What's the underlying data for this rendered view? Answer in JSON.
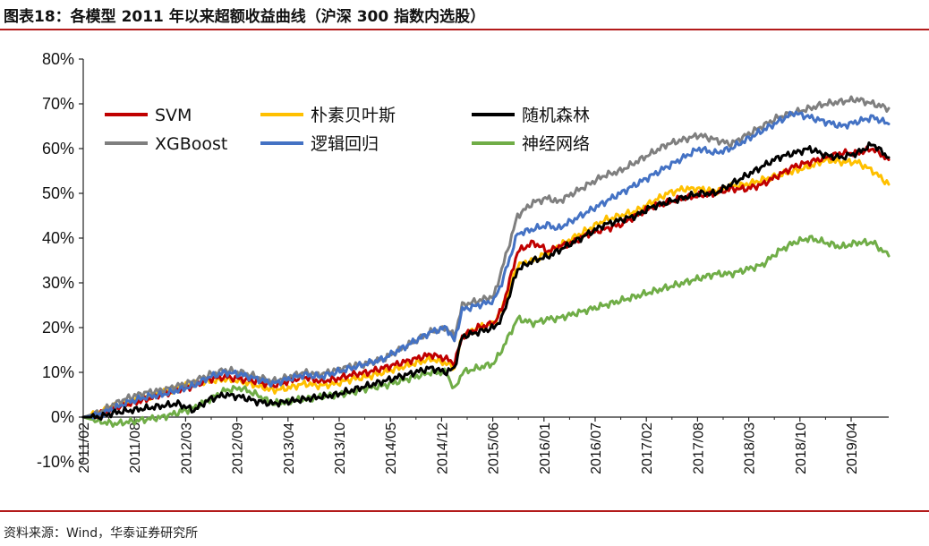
{
  "title": "图表18：各模型 2011 年以来超额收益曲线（沪深 300 指数内选股）",
  "source": "资料来源：Wind，华泰证券研究所",
  "chart_data": {
    "type": "line",
    "ylim": [
      -10,
      80
    ],
    "yticks": [
      -10,
      0,
      10,
      20,
      30,
      40,
      50,
      60,
      70,
      80
    ],
    "ytick_labels": [
      "-10%",
      "0%",
      "10%",
      "20%",
      "30%",
      "40%",
      "50%",
      "60%",
      "70%",
      "80%"
    ],
    "xticks": [
      "2011/02",
      "2011/08",
      "2012/03",
      "2012/09",
      "2013/04",
      "2013/10",
      "2014/05",
      "2014/12",
      "2015/06",
      "2016/01",
      "2016/07",
      "2017/02",
      "2017/08",
      "2018/03",
      "2018/10",
      "2019/04"
    ],
    "legend_placement": "top-left",
    "grid": false,
    "series": [
      {
        "name": "SVM",
        "color": "#c00000",
        "values": [
          [
            0,
            0
          ],
          [
            2,
            0.5
          ],
          [
            4,
            2
          ],
          [
            6,
            3
          ],
          [
            8,
            4
          ],
          [
            10,
            5
          ],
          [
            12,
            6
          ],
          [
            14,
            7
          ],
          [
            16,
            8.5
          ],
          [
            18,
            9
          ],
          [
            20,
            8.5
          ],
          [
            22,
            8
          ],
          [
            24,
            7
          ],
          [
            26,
            8
          ],
          [
            28,
            9
          ],
          [
            30,
            8
          ],
          [
            32,
            8.5
          ],
          [
            34,
            9.5
          ],
          [
            36,
            10
          ],
          [
            38,
            11
          ],
          [
            40,
            12
          ],
          [
            42,
            13
          ],
          [
            44,
            14
          ],
          [
            46,
            13
          ],
          [
            47,
            12
          ],
          [
            48,
            18
          ],
          [
            50,
            20
          ],
          [
            52,
            21
          ],
          [
            53,
            24
          ],
          [
            55,
            37
          ],
          [
            57,
            39
          ],
          [
            59,
            37
          ],
          [
            60,
            38
          ],
          [
            62,
            39
          ],
          [
            64,
            41
          ],
          [
            66,
            42
          ],
          [
            68,
            43
          ],
          [
            70,
            45
          ],
          [
            72,
            47
          ],
          [
            74,
            48
          ],
          [
            76,
            49
          ],
          [
            78,
            49.5
          ],
          [
            80,
            50
          ],
          [
            82,
            51
          ],
          [
            84,
            51
          ],
          [
            86,
            52
          ],
          [
            88,
            54
          ],
          [
            90,
            56
          ],
          [
            92,
            57
          ],
          [
            94,
            58
          ],
          [
            96,
            59
          ],
          [
            98,
            59
          ],
          [
            100,
            60
          ],
          [
            102,
            57.5
          ]
        ]
      },
      {
        "name": "朴素贝叶斯",
        "color": "#ffc000",
        "values": [
          [
            0,
            0
          ],
          [
            2,
            1
          ],
          [
            4,
            2.5
          ],
          [
            6,
            3.5
          ],
          [
            8,
            4.5
          ],
          [
            10,
            5.5
          ],
          [
            12,
            6.5
          ],
          [
            14,
            7.5
          ],
          [
            16,
            8
          ],
          [
            18,
            8.5
          ],
          [
            20,
            8
          ],
          [
            22,
            7
          ],
          [
            24,
            6
          ],
          [
            26,
            6.5
          ],
          [
            28,
            7.5
          ],
          [
            30,
            7
          ],
          [
            32,
            7.5
          ],
          [
            34,
            8.5
          ],
          [
            36,
            9
          ],
          [
            38,
            10
          ],
          [
            40,
            11
          ],
          [
            42,
            12
          ],
          [
            44,
            13
          ],
          [
            46,
            12
          ],
          [
            47,
            11
          ],
          [
            48,
            18
          ],
          [
            50,
            20
          ],
          [
            52,
            21
          ],
          [
            53,
            24
          ],
          [
            55,
            34
          ],
          [
            57,
            35
          ],
          [
            59,
            37
          ],
          [
            60,
            38
          ],
          [
            62,
            40
          ],
          [
            64,
            42
          ],
          [
            66,
            44
          ],
          [
            68,
            45
          ],
          [
            70,
            46
          ],
          [
            72,
            48
          ],
          [
            74,
            50
          ],
          [
            76,
            51
          ],
          [
            78,
            51
          ],
          [
            80,
            50.5
          ],
          [
            82,
            51.5
          ],
          [
            84,
            52
          ],
          [
            86,
            53
          ],
          [
            88,
            54
          ],
          [
            90,
            55
          ],
          [
            92,
            56
          ],
          [
            94,
            57.5
          ],
          [
            96,
            57
          ],
          [
            98,
            57
          ],
          [
            100,
            55
          ],
          [
            102,
            52
          ]
        ]
      },
      {
        "name": "随机森林",
        "color": "#000000",
        "values": [
          [
            0,
            0
          ],
          [
            2,
            0
          ],
          [
            4,
            1
          ],
          [
            6,
            1.5
          ],
          [
            8,
            2
          ],
          [
            10,
            2.5
          ],
          [
            12,
            3
          ],
          [
            14,
            1.5
          ],
          [
            16,
            4
          ],
          [
            18,
            5
          ],
          [
            20,
            4.5
          ],
          [
            22,
            3.5
          ],
          [
            24,
            3
          ],
          [
            26,
            3.5
          ],
          [
            28,
            4
          ],
          [
            30,
            4.5
          ],
          [
            32,
            5
          ],
          [
            34,
            6
          ],
          [
            36,
            7
          ],
          [
            38,
            8
          ],
          [
            40,
            9
          ],
          [
            42,
            10
          ],
          [
            44,
            11
          ],
          [
            46,
            10
          ],
          [
            47,
            11
          ],
          [
            48,
            18
          ],
          [
            50,
            19
          ],
          [
            52,
            20
          ],
          [
            53,
            22
          ],
          [
            55,
            33
          ],
          [
            57,
            35
          ],
          [
            59,
            36
          ],
          [
            60,
            37
          ],
          [
            62,
            39
          ],
          [
            64,
            41
          ],
          [
            66,
            43
          ],
          [
            68,
            44
          ],
          [
            70,
            45
          ],
          [
            72,
            47
          ],
          [
            74,
            48
          ],
          [
            76,
            49
          ],
          [
            78,
            50
          ],
          [
            80,
            50
          ],
          [
            82,
            52
          ],
          [
            84,
            54
          ],
          [
            86,
            56
          ],
          [
            88,
            58
          ],
          [
            90,
            59
          ],
          [
            92,
            60
          ],
          [
            94,
            58.5
          ],
          [
            96,
            58
          ],
          [
            98,
            59
          ],
          [
            100,
            61
          ],
          [
            102,
            58
          ]
        ]
      },
      {
        "name": "XGBoost",
        "color": "#7f7f7f",
        "values": [
          [
            0,
            0
          ],
          [
            2,
            1
          ],
          [
            4,
            3
          ],
          [
            6,
            4.5
          ],
          [
            8,
            5.5
          ],
          [
            10,
            6
          ],
          [
            12,
            7
          ],
          [
            14,
            8
          ],
          [
            16,
            9.5
          ],
          [
            18,
            10.5
          ],
          [
            20,
            10
          ],
          [
            22,
            9
          ],
          [
            24,
            8
          ],
          [
            26,
            9
          ],
          [
            28,
            10
          ],
          [
            30,
            9.5
          ],
          [
            32,
            10.5
          ],
          [
            34,
            11.5
          ],
          [
            36,
            12
          ],
          [
            38,
            13
          ],
          [
            40,
            15
          ],
          [
            42,
            17
          ],
          [
            44,
            19
          ],
          [
            46,
            20
          ],
          [
            47,
            18
          ],
          [
            48,
            25
          ],
          [
            50,
            26
          ],
          [
            52,
            27
          ],
          [
            53,
            33
          ],
          [
            55,
            45
          ],
          [
            57,
            48
          ],
          [
            59,
            49
          ],
          [
            60,
            48
          ],
          [
            62,
            50
          ],
          [
            64,
            52
          ],
          [
            66,
            54
          ],
          [
            68,
            55
          ],
          [
            70,
            57
          ],
          [
            72,
            59
          ],
          [
            74,
            61
          ],
          [
            76,
            62
          ],
          [
            78,
            63
          ],
          [
            80,
            62
          ],
          [
            82,
            61
          ],
          [
            84,
            63
          ],
          [
            86,
            65
          ],
          [
            88,
            67
          ],
          [
            90,
            68
          ],
          [
            92,
            69
          ],
          [
            94,
            70
          ],
          [
            96,
            70.5
          ],
          [
            98,
            71
          ],
          [
            100,
            70
          ],
          [
            102,
            69
          ]
        ]
      },
      {
        "name": "逻辑回归",
        "color": "#4472c4",
        "values": [
          [
            0,
            0
          ],
          [
            2,
            0.5
          ],
          [
            4,
            2
          ],
          [
            6,
            3.5
          ],
          [
            8,
            4.5
          ],
          [
            10,
            5
          ],
          [
            12,
            6
          ],
          [
            14,
            7
          ],
          [
            16,
            9
          ],
          [
            18,
            10
          ],
          [
            20,
            9.5
          ],
          [
            22,
            8.5
          ],
          [
            24,
            7.5
          ],
          [
            26,
            8.5
          ],
          [
            28,
            9.5
          ],
          [
            30,
            9
          ],
          [
            32,
            10
          ],
          [
            34,
            11
          ],
          [
            36,
            12
          ],
          [
            38,
            13
          ],
          [
            40,
            15
          ],
          [
            42,
            17
          ],
          [
            44,
            19
          ],
          [
            46,
            20
          ],
          [
            47,
            17
          ],
          [
            48,
            24
          ],
          [
            50,
            25
          ],
          [
            52,
            26
          ],
          [
            53,
            30
          ],
          [
            55,
            41
          ],
          [
            57,
            42
          ],
          [
            59,
            43
          ],
          [
            60,
            42
          ],
          [
            62,
            44
          ],
          [
            64,
            46
          ],
          [
            66,
            48
          ],
          [
            68,
            50
          ],
          [
            70,
            52
          ],
          [
            72,
            54
          ],
          [
            74,
            56
          ],
          [
            76,
            58
          ],
          [
            78,
            60
          ],
          [
            80,
            59
          ],
          [
            82,
            60
          ],
          [
            84,
            62
          ],
          [
            86,
            64
          ],
          [
            88,
            66
          ],
          [
            90,
            68
          ],
          [
            92,
            67
          ],
          [
            94,
            66
          ],
          [
            96,
            65
          ],
          [
            98,
            66
          ],
          [
            100,
            67
          ],
          [
            102,
            65.5
          ]
        ]
      },
      {
        "name": "神经网络",
        "color": "#70ad47",
        "values": [
          [
            0,
            0
          ],
          [
            2,
            -1
          ],
          [
            4,
            -1.5
          ],
          [
            6,
            -1
          ],
          [
            8,
            -0.5
          ],
          [
            10,
            0
          ],
          [
            12,
            1
          ],
          [
            14,
            2
          ],
          [
            16,
            4
          ],
          [
            18,
            6
          ],
          [
            20,
            6.5
          ],
          [
            22,
            5
          ],
          [
            24,
            3
          ],
          [
            26,
            3.5
          ],
          [
            28,
            4
          ],
          [
            30,
            4.5
          ],
          [
            32,
            5
          ],
          [
            34,
            5.5
          ],
          [
            36,
            6.5
          ],
          [
            38,
            7
          ],
          [
            40,
            8
          ],
          [
            42,
            9
          ],
          [
            44,
            10
          ],
          [
            46,
            10
          ],
          [
            47,
            6
          ],
          [
            48,
            10
          ],
          [
            50,
            11
          ],
          [
            52,
            12
          ],
          [
            53,
            15
          ],
          [
            55,
            22
          ],
          [
            57,
            21
          ],
          [
            59,
            22
          ],
          [
            60,
            22
          ],
          [
            62,
            23
          ],
          [
            64,
            24
          ],
          [
            66,
            25
          ],
          [
            68,
            26
          ],
          [
            70,
            27
          ],
          [
            72,
            28
          ],
          [
            74,
            29
          ],
          [
            76,
            30
          ],
          [
            78,
            31
          ],
          [
            80,
            32
          ],
          [
            82,
            32
          ],
          [
            84,
            33
          ],
          [
            86,
            34
          ],
          [
            88,
            37
          ],
          [
            90,
            39
          ],
          [
            92,
            40
          ],
          [
            94,
            39
          ],
          [
            96,
            38
          ],
          [
            98,
            39
          ],
          [
            100,
            39
          ],
          [
            102,
            36
          ]
        ]
      }
    ]
  }
}
